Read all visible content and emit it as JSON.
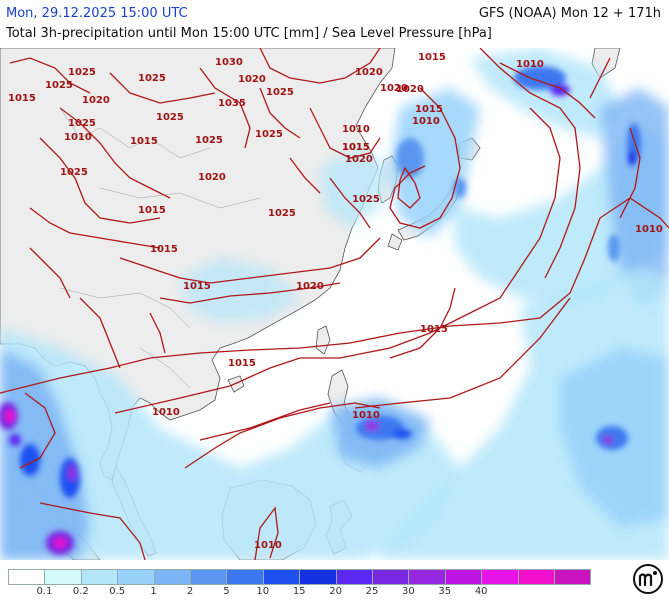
{
  "header": {
    "datetime": "Mon, 29.12.2025 15:00 UTC",
    "model": "GFS (NOAA) Mon 12 + 171h",
    "description": "Total 3h-precipitation until Mon 15:00 UTC [mm] / Sea Level Pressure [hPa]"
  },
  "colors": {
    "land": "#ededed",
    "ocean": "#ffffff",
    "coast": "#555555",
    "isobar": "#b01818",
    "header_date": "#1a3fcc"
  },
  "isobar_labels": [
    "1030",
    "1025",
    "1025",
    "1020",
    "1015",
    "1020",
    "1035",
    "1025",
    "1025",
    "1025",
    "1020",
    "1025",
    "1015",
    "1020",
    "1025",
    "1015",
    "1025",
    "1015",
    "1015",
    "1020",
    "1015",
    "1015",
    "1010",
    "1010",
    "1010",
    "1010",
    "1010",
    "1025",
    "1015",
    "1020",
    "1010",
    "1020",
    "1015",
    "1025",
    "1025",
    "1010",
    "1015",
    "1015",
    "1010",
    "1020"
  ],
  "legend": {
    "colors": [
      "#ffffff",
      "#d2fafa",
      "#b4e6fa",
      "#96d2fa",
      "#7ab4f5",
      "#5a96f0",
      "#3c78f0",
      "#1e50f0",
      "#1432e1",
      "#5a28f0",
      "#7828e1",
      "#9628e1",
      "#be14e1",
      "#e614e6",
      "#f00fcd",
      "#c814be"
    ],
    "ticks": [
      "0.1",
      "0.2",
      "0.5",
      "1",
      "2",
      "5",
      "10",
      "15",
      "20",
      "25",
      "30",
      "35",
      "40"
    ]
  },
  "brand_icon": "meteologix-m-logo"
}
